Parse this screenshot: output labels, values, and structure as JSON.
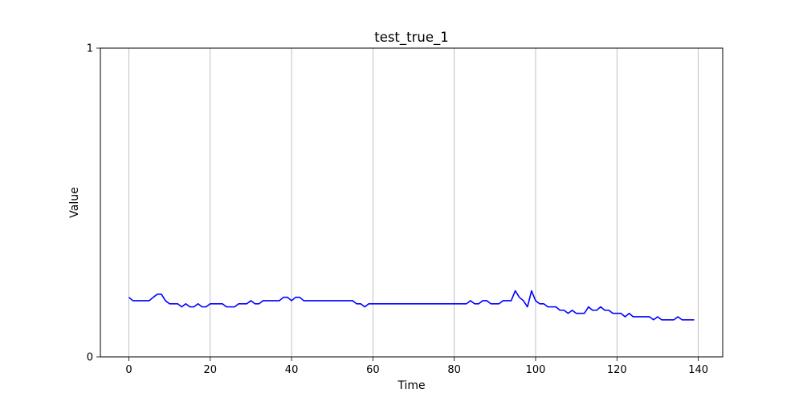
{
  "chart_data": {
    "type": "line",
    "title": "test_true_1",
    "xlabel": "Time",
    "ylabel": "Value",
    "xlim": [
      -7,
      146
    ],
    "ylim": [
      0,
      1
    ],
    "x_ticks": [
      0,
      20,
      40,
      60,
      80,
      100,
      120,
      140
    ],
    "y_ticks": [
      0,
      1
    ],
    "grid": "vertical",
    "legend": "none",
    "series": [
      {
        "color": "#0000ff",
        "x": [
          0,
          1,
          2,
          3,
          4,
          5,
          6,
          7,
          8,
          9,
          10,
          11,
          12,
          13,
          14,
          15,
          16,
          17,
          18,
          19,
          20,
          21,
          22,
          23,
          24,
          25,
          26,
          27,
          28,
          29,
          30,
          31,
          32,
          33,
          34,
          35,
          36,
          37,
          38,
          39,
          40,
          41,
          42,
          43,
          44,
          45,
          46,
          47,
          48,
          49,
          50,
          51,
          52,
          53,
          54,
          55,
          56,
          57,
          58,
          59,
          60,
          61,
          62,
          63,
          64,
          65,
          66,
          67,
          68,
          69,
          70,
          71,
          72,
          73,
          74,
          75,
          76,
          77,
          78,
          79,
          80,
          81,
          82,
          83,
          84,
          85,
          86,
          87,
          88,
          89,
          90,
          91,
          92,
          93,
          94,
          95,
          96,
          97,
          98,
          99,
          100,
          101,
          102,
          103,
          104,
          105,
          106,
          107,
          108,
          109,
          110,
          111,
          112,
          113,
          114,
          115,
          116,
          117,
          118,
          119,
          120,
          121,
          122,
          123,
          124,
          125,
          126,
          127,
          128,
          129,
          130,
          131,
          132,
          133,
          134,
          135,
          136,
          137,
          138,
          139
        ],
        "y": [
          0.193,
          0.182,
          0.182,
          0.182,
          0.182,
          0.182,
          0.193,
          0.203,
          0.203,
          0.182,
          0.172,
          0.172,
          0.172,
          0.162,
          0.172,
          0.162,
          0.162,
          0.172,
          0.162,
          0.162,
          0.172,
          0.172,
          0.172,
          0.172,
          0.162,
          0.162,
          0.162,
          0.172,
          0.172,
          0.172,
          0.182,
          0.172,
          0.172,
          0.182,
          0.182,
          0.182,
          0.182,
          0.182,
          0.193,
          0.193,
          0.182,
          0.193,
          0.193,
          0.182,
          0.182,
          0.182,
          0.182,
          0.182,
          0.182,
          0.182,
          0.182,
          0.182,
          0.182,
          0.182,
          0.182,
          0.182,
          0.172,
          0.172,
          0.162,
          0.172,
          0.172,
          0.172,
          0.172,
          0.172,
          0.172,
          0.172,
          0.172,
          0.172,
          0.172,
          0.172,
          0.172,
          0.172,
          0.172,
          0.172,
          0.172,
          0.172,
          0.172,
          0.172,
          0.172,
          0.172,
          0.172,
          0.172,
          0.172,
          0.172,
          0.182,
          0.172,
          0.172,
          0.182,
          0.182,
          0.172,
          0.172,
          0.172,
          0.182,
          0.182,
          0.182,
          0.214,
          0.193,
          0.182,
          0.162,
          0.214,
          0.182,
          0.172,
          0.172,
          0.162,
          0.162,
          0.162,
          0.151,
          0.151,
          0.141,
          0.151,
          0.141,
          0.141,
          0.141,
          0.162,
          0.151,
          0.151,
          0.162,
          0.151,
          0.151,
          0.141,
          0.141,
          0.141,
          0.13,
          0.141,
          0.13,
          0.13,
          0.13,
          0.13,
          0.13,
          0.12,
          0.13,
          0.12,
          0.12,
          0.12,
          0.12,
          0.13,
          0.12,
          0.12,
          0.12,
          0.12
        ]
      }
    ]
  }
}
